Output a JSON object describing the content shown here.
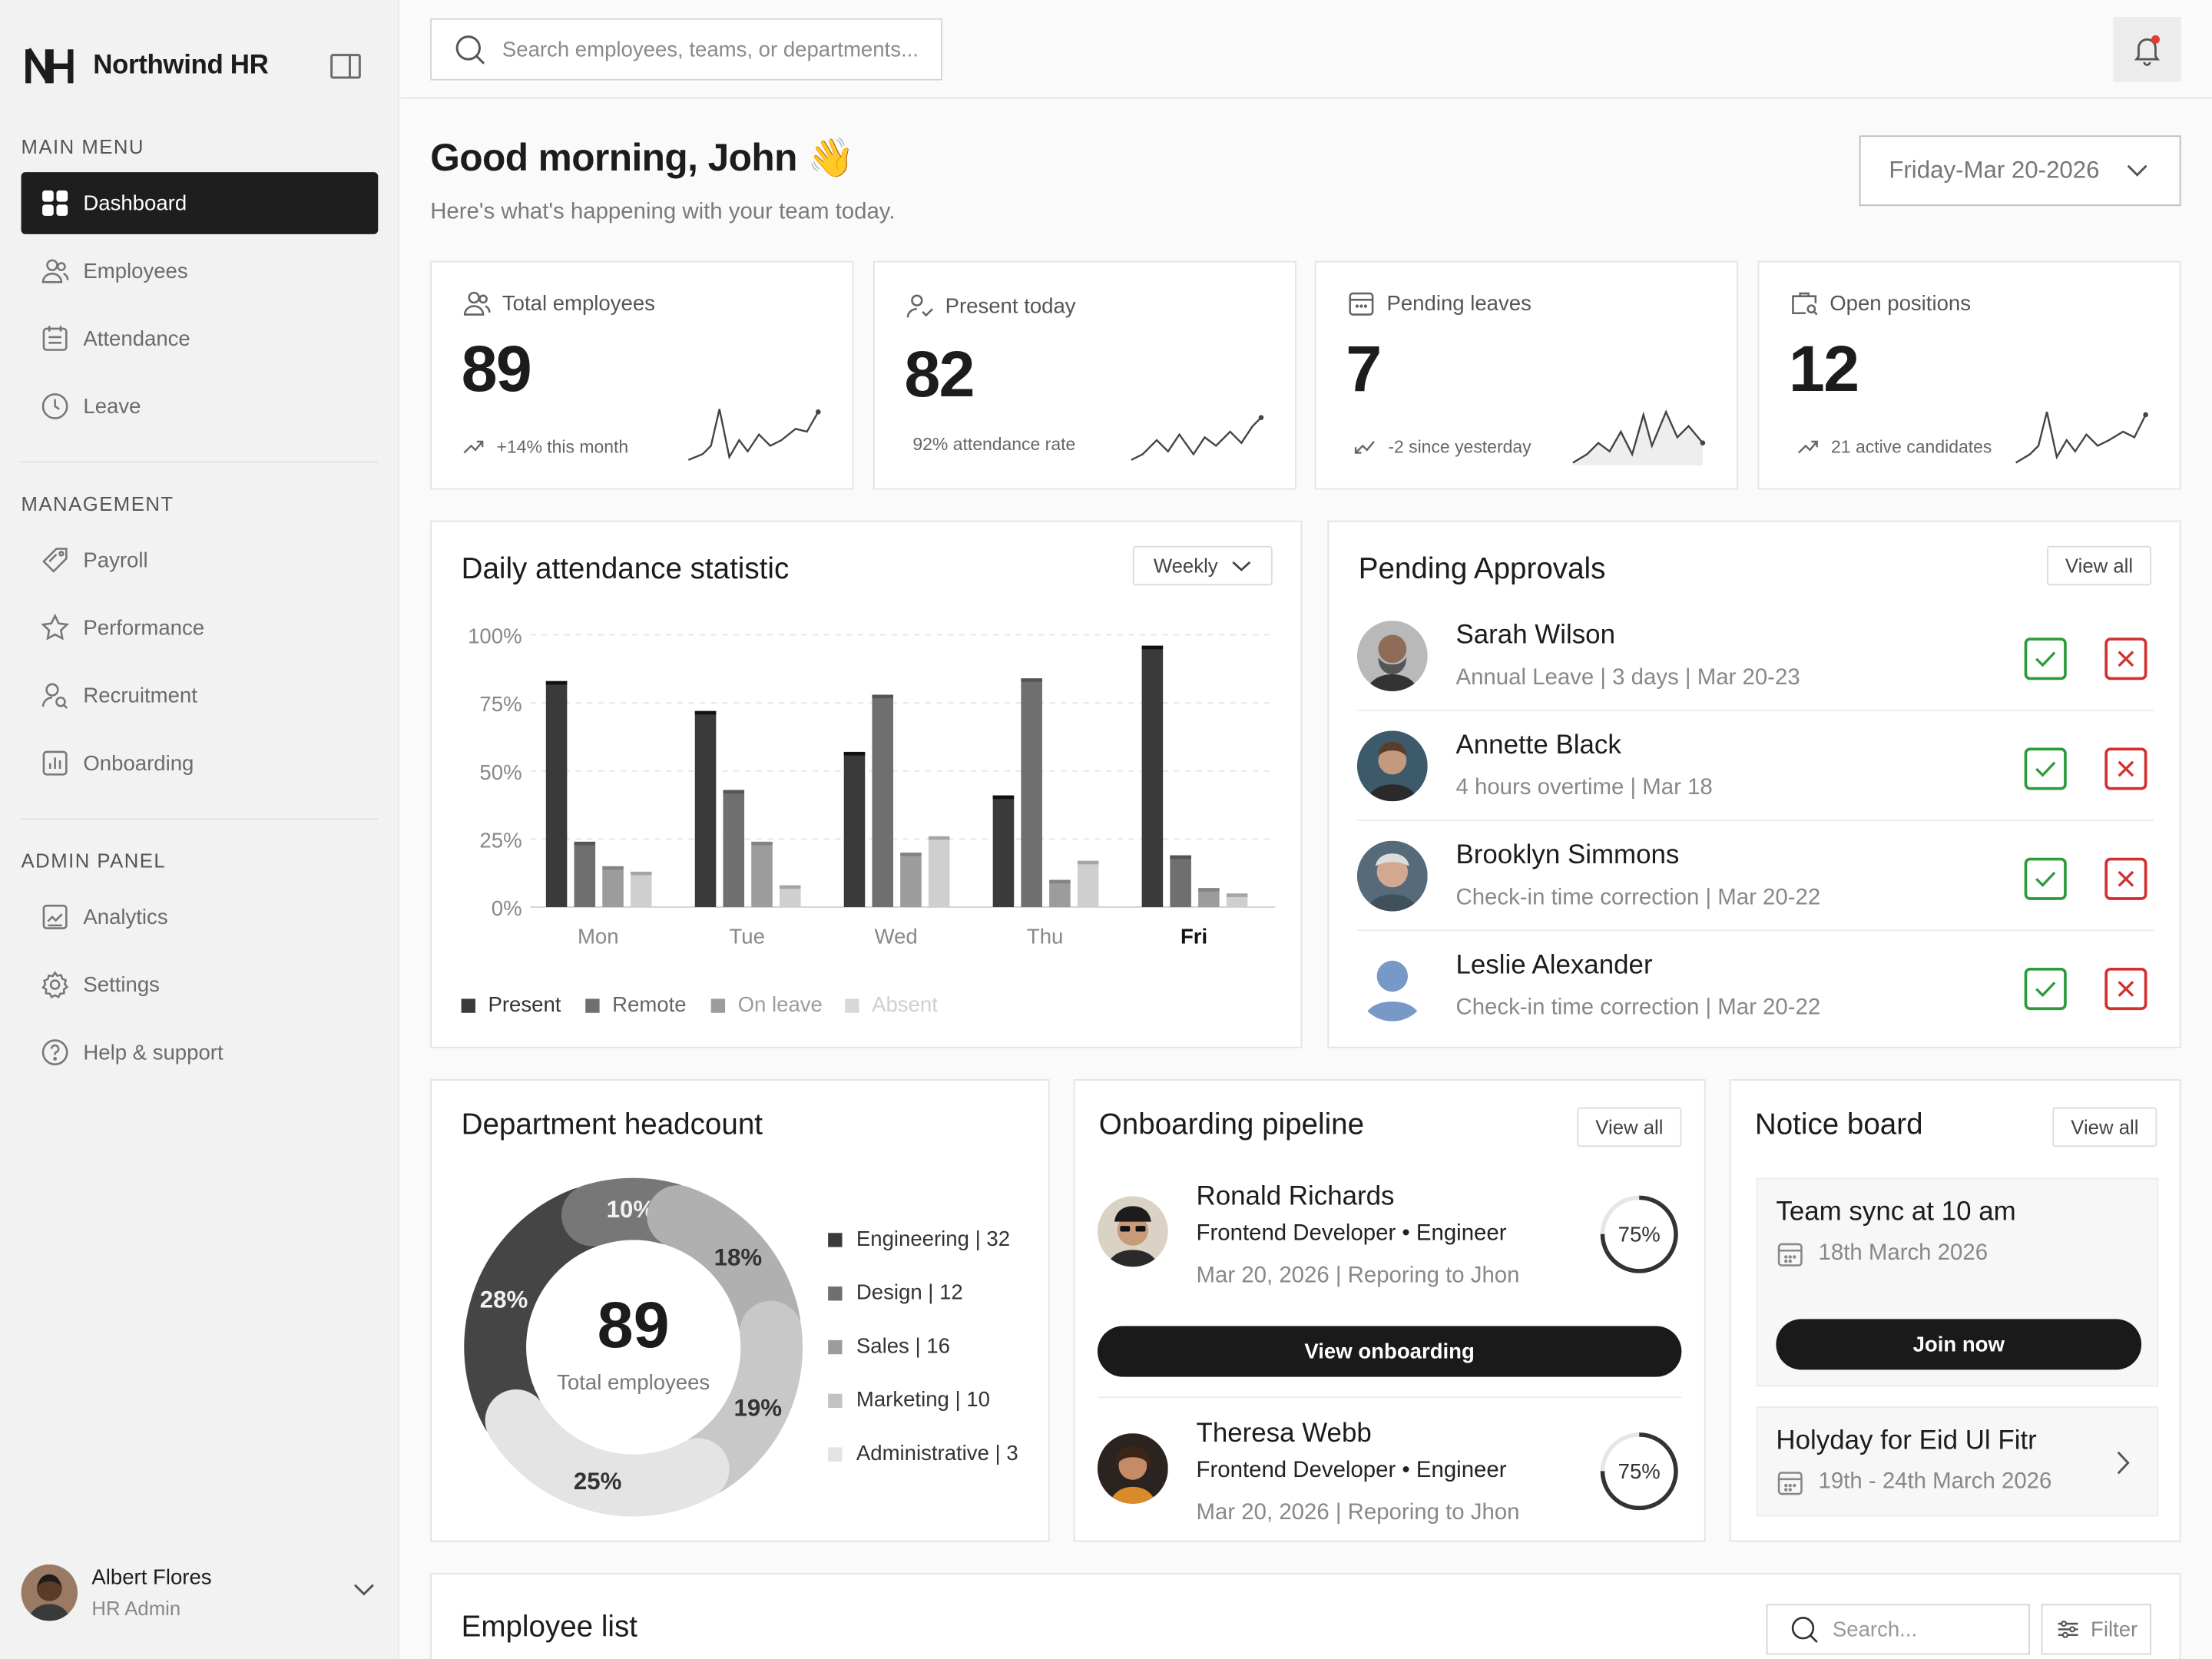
{
  "app": {
    "name": "Northwind HR"
  },
  "sidebar": {
    "main_menu_label": "MAIN MENU",
    "main_items": [
      {
        "label": "Dashboard",
        "icon": "grid-icon",
        "active": true
      },
      {
        "label": "Employees",
        "icon": "users-icon"
      },
      {
        "label": "Attendance",
        "icon": "calendar-list-icon"
      },
      {
        "label": "Leave",
        "icon": "clock-icon"
      }
    ],
    "management_label": "MANAGEMENT",
    "management_items": [
      {
        "label": "Payroll",
        "icon": "tag-icon"
      },
      {
        "label": "Performance",
        "icon": "star-icon"
      },
      {
        "label": "Recruitment",
        "icon": "user-search-icon"
      },
      {
        "label": "Onboarding",
        "icon": "bar-chart-icon"
      }
    ],
    "admin_label": "ADMIN PANEL",
    "admin_items": [
      {
        "label": "Analytics",
        "icon": "analytics-icon"
      },
      {
        "label": "Settings",
        "icon": "gear-icon"
      },
      {
        "label": "Help & support",
        "icon": "help-icon"
      }
    ],
    "user": {
      "name": "Albert Flores",
      "role": "HR Admin"
    }
  },
  "topbar": {
    "search_placeholder": "Search employees, teams, or departments..."
  },
  "header": {
    "greeting": "Good morning, John 👋",
    "subtitle": "Here's what's happening with your team today.",
    "date": "Friday-Mar 20-2026"
  },
  "stats": [
    {
      "label": "Total employees",
      "value": "89",
      "trend": "+14% this month",
      "trend_dir": "up"
    },
    {
      "label": "Present today",
      "value": "82",
      "trend": "92%  attendance rate",
      "trend_dir": "none"
    },
    {
      "label": "Pending leaves",
      "value": "7",
      "trend": "-2 since yesterday",
      "trend_dir": "down"
    },
    {
      "label": "Open positions",
      "value": "12",
      "trend": "21 active candidates",
      "trend_dir": "up"
    }
  ],
  "attendance": {
    "title": "Daily attendance statistic",
    "filter": "Weekly",
    "active_day": "Fri"
  },
  "chart_data": {
    "type": "bar",
    "title": "Daily attendance statistic",
    "categories": [
      "Mon",
      "Tue",
      "Wed",
      "Thu",
      "Fri"
    ],
    "ylim": [
      0,
      100
    ],
    "yticks": [
      "100%",
      "75%",
      "50%",
      "25%",
      "0%"
    ],
    "grid": true,
    "legend_position": "bottom-left",
    "series": [
      {
        "name": "Present",
        "color": "#3a3a3a",
        "values": [
          83,
          72,
          57,
          41,
          96
        ]
      },
      {
        "name": "Remote",
        "color": "#6f6f6f",
        "values": [
          24,
          43,
          78,
          84,
          19
        ]
      },
      {
        "name": "On leave",
        "color": "#9c9c9c",
        "values": [
          15,
          24,
          20,
          10,
          7
        ]
      },
      {
        "name": "Absent",
        "color": "#cfcfcf",
        "values": [
          13,
          8,
          26,
          17,
          5
        ]
      }
    ]
  },
  "approvals": {
    "title": "Pending Approvals",
    "view_all": "View all",
    "items": [
      {
        "name": "Sarah Wilson",
        "detail": "Annual Leave | 3 days | Mar 20-23"
      },
      {
        "name": "Annette Black",
        "detail": "4 hours overtime |  Mar 18"
      },
      {
        "name": "Brooklyn Simmons",
        "detail": "Check-in time correction | Mar 20-22"
      },
      {
        "name": "Leslie Alexander",
        "detail": "Check-in time correction | Mar 20-22"
      }
    ]
  },
  "department": {
    "title": "Department headcount",
    "center_value": "89",
    "center_label": "Total employees",
    "segments": [
      {
        "pct": "28%",
        "value": 28,
        "color": "#454545"
      },
      {
        "pct": "10%",
        "value": 10,
        "color": "#777777"
      },
      {
        "pct": "18%",
        "value": 18,
        "color": "#b0b0b0"
      },
      {
        "pct": "19%",
        "value": 19,
        "color": "#c8c8c8"
      },
      {
        "pct": "25%",
        "value": 25,
        "color": "#e4e4e4"
      }
    ],
    "legend": [
      {
        "label": "Engineering | 32",
        "color": "#3a3a3a"
      },
      {
        "label": "Design | 12",
        "color": "#6f6f6f"
      },
      {
        "label": "Sales | 16",
        "color": "#9c9c9c"
      },
      {
        "label": "Marketing | 10",
        "color": "#c2c2c2"
      },
      {
        "label": "Administrative | 3",
        "color": "#e3e3e3"
      }
    ]
  },
  "onboarding": {
    "title": "Onboarding pipeline",
    "view_all": "View all",
    "button": "View onboarding",
    "items": [
      {
        "name": "Ronald Richards",
        "role": "Frontend Developer • Engineer",
        "date": "Mar 20, 2026 | Reporing to Jhon",
        "progress": "75%",
        "progress_value": 0.75
      },
      {
        "name": "Theresa Webb",
        "role": "Frontend Developer • Engineer",
        "date": "Mar 20, 2026 | Reporing to Jhon",
        "progress": "75%",
        "progress_value": 0.75
      }
    ]
  },
  "notice": {
    "title": "Notice board",
    "view_all": "View all",
    "items": [
      {
        "title": "Team sync at 10 am",
        "date": "18th March 2026",
        "button": "Join now"
      },
      {
        "title": "Holyday for Eid Ul Fitr",
        "date": "19th - 24th March 2026"
      }
    ]
  },
  "employee_list": {
    "title": "Employee list",
    "search_placeholder": "Search...",
    "filter": "Filter"
  }
}
